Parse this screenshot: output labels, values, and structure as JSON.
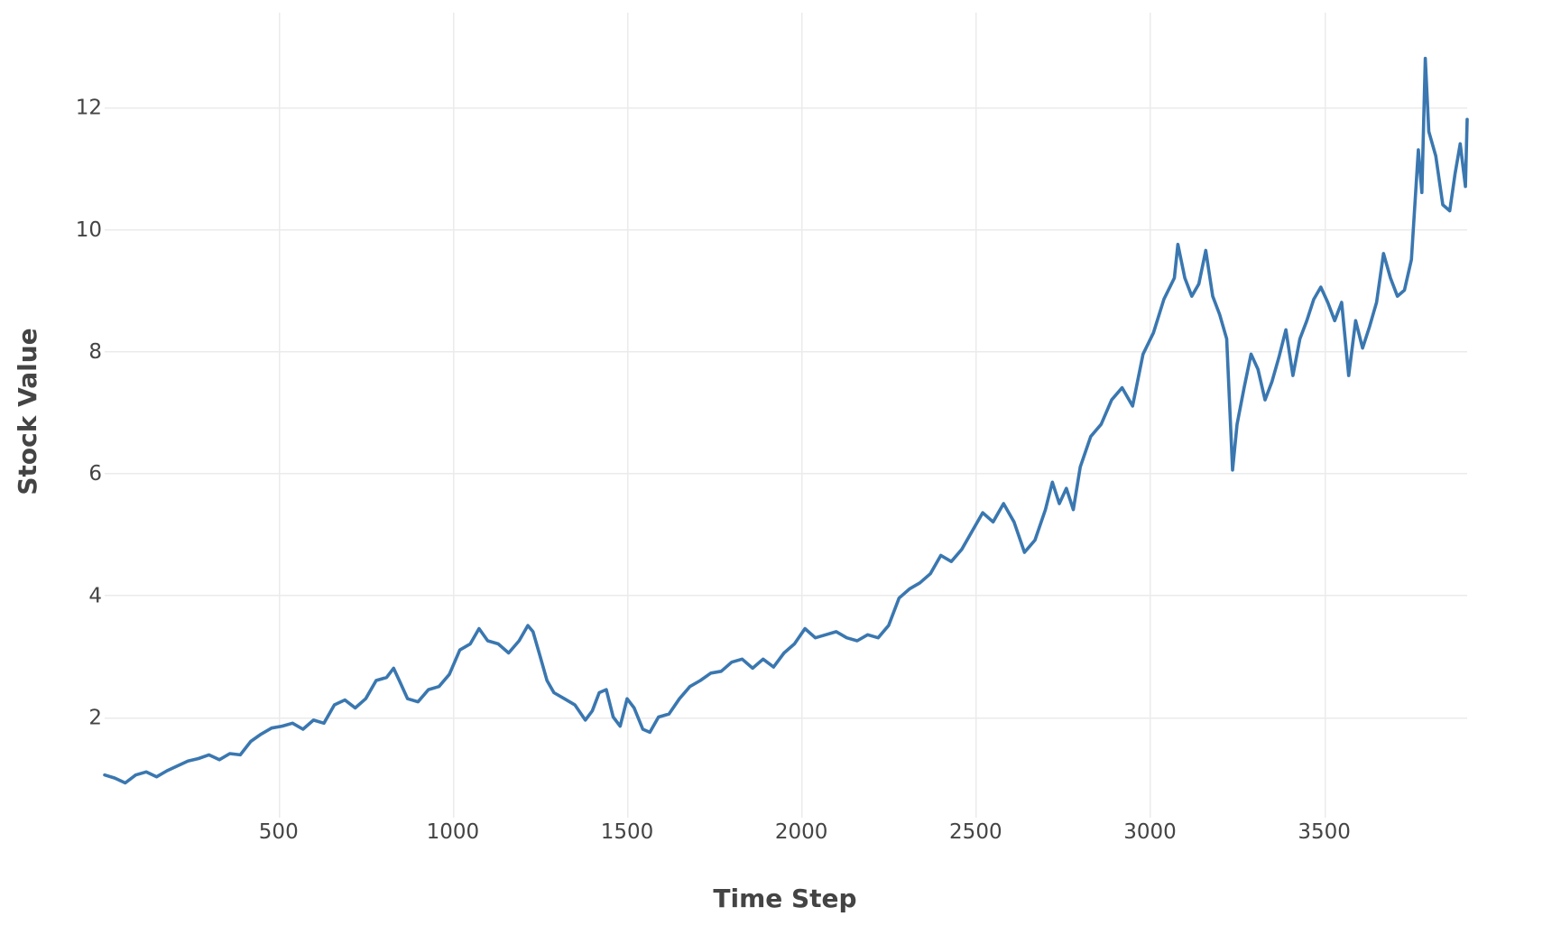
{
  "chart_data": {
    "type": "line",
    "title": "",
    "xlabel": "Time Step",
    "ylabel": "Stock Value",
    "xlim": [
      1,
      3910
    ],
    "ylim": [
      0.35,
      13.55
    ],
    "xticks": [
      500,
      1000,
      1500,
      2000,
      2500,
      3000,
      3500
    ],
    "yticks": [
      2,
      4,
      6,
      8,
      10,
      12
    ],
    "grid": true,
    "legend": "none",
    "colors": {
      "line": "#3a77b0",
      "grid": "#ebebeb",
      "text": "#444444"
    },
    "series": [
      {
        "x": [
          1,
          30,
          60,
          90,
          120,
          150,
          180,
          210,
          240,
          270,
          300,
          330,
          360,
          390,
          420,
          450,
          480,
          510,
          540,
          570,
          600,
          630,
          660,
          690,
          720,
          750,
          780,
          810,
          830,
          850,
          870,
          900,
          930,
          960,
          990,
          1020,
          1050,
          1075,
          1100,
          1130,
          1160,
          1190,
          1215,
          1230,
          1250,
          1270,
          1290,
          1320,
          1350,
          1380,
          1400,
          1420,
          1440,
          1460,
          1480,
          1500,
          1520,
          1545,
          1565,
          1590,
          1620,
          1650,
          1680,
          1710,
          1740,
          1770,
          1800,
          1830,
          1860,
          1890,
          1920,
          1950,
          1980,
          2010,
          2040,
          2070,
          2100,
          2130,
          2160,
          2190,
          2220,
          2250,
          2280,
          2310,
          2340,
          2370,
          2400,
          2430,
          2460,
          2490,
          2520,
          2550,
          2580,
          2610,
          2640,
          2670,
          2700,
          2720,
          2740,
          2760,
          2780,
          2800,
          2830,
          2860,
          2890,
          2920,
          2950,
          2980,
          3010,
          3040,
          3070,
          3080,
          3100,
          3120,
          3140,
          3160,
          3180,
          3200,
          3220,
          3237,
          3250,
          3270,
          3290,
          3310,
          3330,
          3350,
          3370,
          3390,
          3410,
          3430,
          3450,
          3470,
          3490,
          3510,
          3530,
          3550,
          3570,
          3590,
          3610,
          3630,
          3650,
          3670,
          3690,
          3710,
          3730,
          3750,
          3770,
          3780,
          3790,
          3800,
          3820,
          3840,
          3860,
          3875,
          3890,
          3905,
          3910
        ],
        "values": [
          1.05,
          1.0,
          0.92,
          1.05,
          1.1,
          1.02,
          1.12,
          1.2,
          1.28,
          1.32,
          1.38,
          1.3,
          1.4,
          1.38,
          1.6,
          1.72,
          1.82,
          1.85,
          1.9,
          1.8,
          1.95,
          1.9,
          2.2,
          2.28,
          2.15,
          2.3,
          2.6,
          2.65,
          2.8,
          2.55,
          2.3,
          2.25,
          2.45,
          2.5,
          2.7,
          3.1,
          3.2,
          3.45,
          3.25,
          3.2,
          3.05,
          3.25,
          3.5,
          3.4,
          3.0,
          2.6,
          2.4,
          2.3,
          2.2,
          1.95,
          2.1,
          2.4,
          2.45,
          2.0,
          1.85,
          2.3,
          2.15,
          1.8,
          1.75,
          2.0,
          2.05,
          2.3,
          2.5,
          2.6,
          2.72,
          2.75,
          2.9,
          2.95,
          2.8,
          2.95,
          2.82,
          3.05,
          3.2,
          3.45,
          3.3,
          3.35,
          3.4,
          3.3,
          3.25,
          3.35,
          3.3,
          3.5,
          3.95,
          4.1,
          4.2,
          4.35,
          4.65,
          4.55,
          4.75,
          5.05,
          5.35,
          5.2,
          5.5,
          5.2,
          4.7,
          4.9,
          5.4,
          5.85,
          5.5,
          5.75,
          5.4,
          6.1,
          6.6,
          6.8,
          7.2,
          7.4,
          7.1,
          7.95,
          8.3,
          8.85,
          9.2,
          9.75,
          9.2,
          8.9,
          9.1,
          9.65,
          8.9,
          8.6,
          8.2,
          6.05,
          6.8,
          7.4,
          7.95,
          7.7,
          7.2,
          7.5,
          7.9,
          8.35,
          7.6,
          8.2,
          8.5,
          8.85,
          9.05,
          8.8,
          8.5,
          8.8,
          7.6,
          8.5,
          8.05,
          8.4,
          8.8,
          9.6,
          9.2,
          8.9,
          9.0,
          9.5,
          11.3,
          10.6,
          12.8,
          11.6,
          11.2,
          10.4,
          10.3,
          10.9,
          11.4,
          10.7,
          11.8
        ]
      }
    ]
  }
}
